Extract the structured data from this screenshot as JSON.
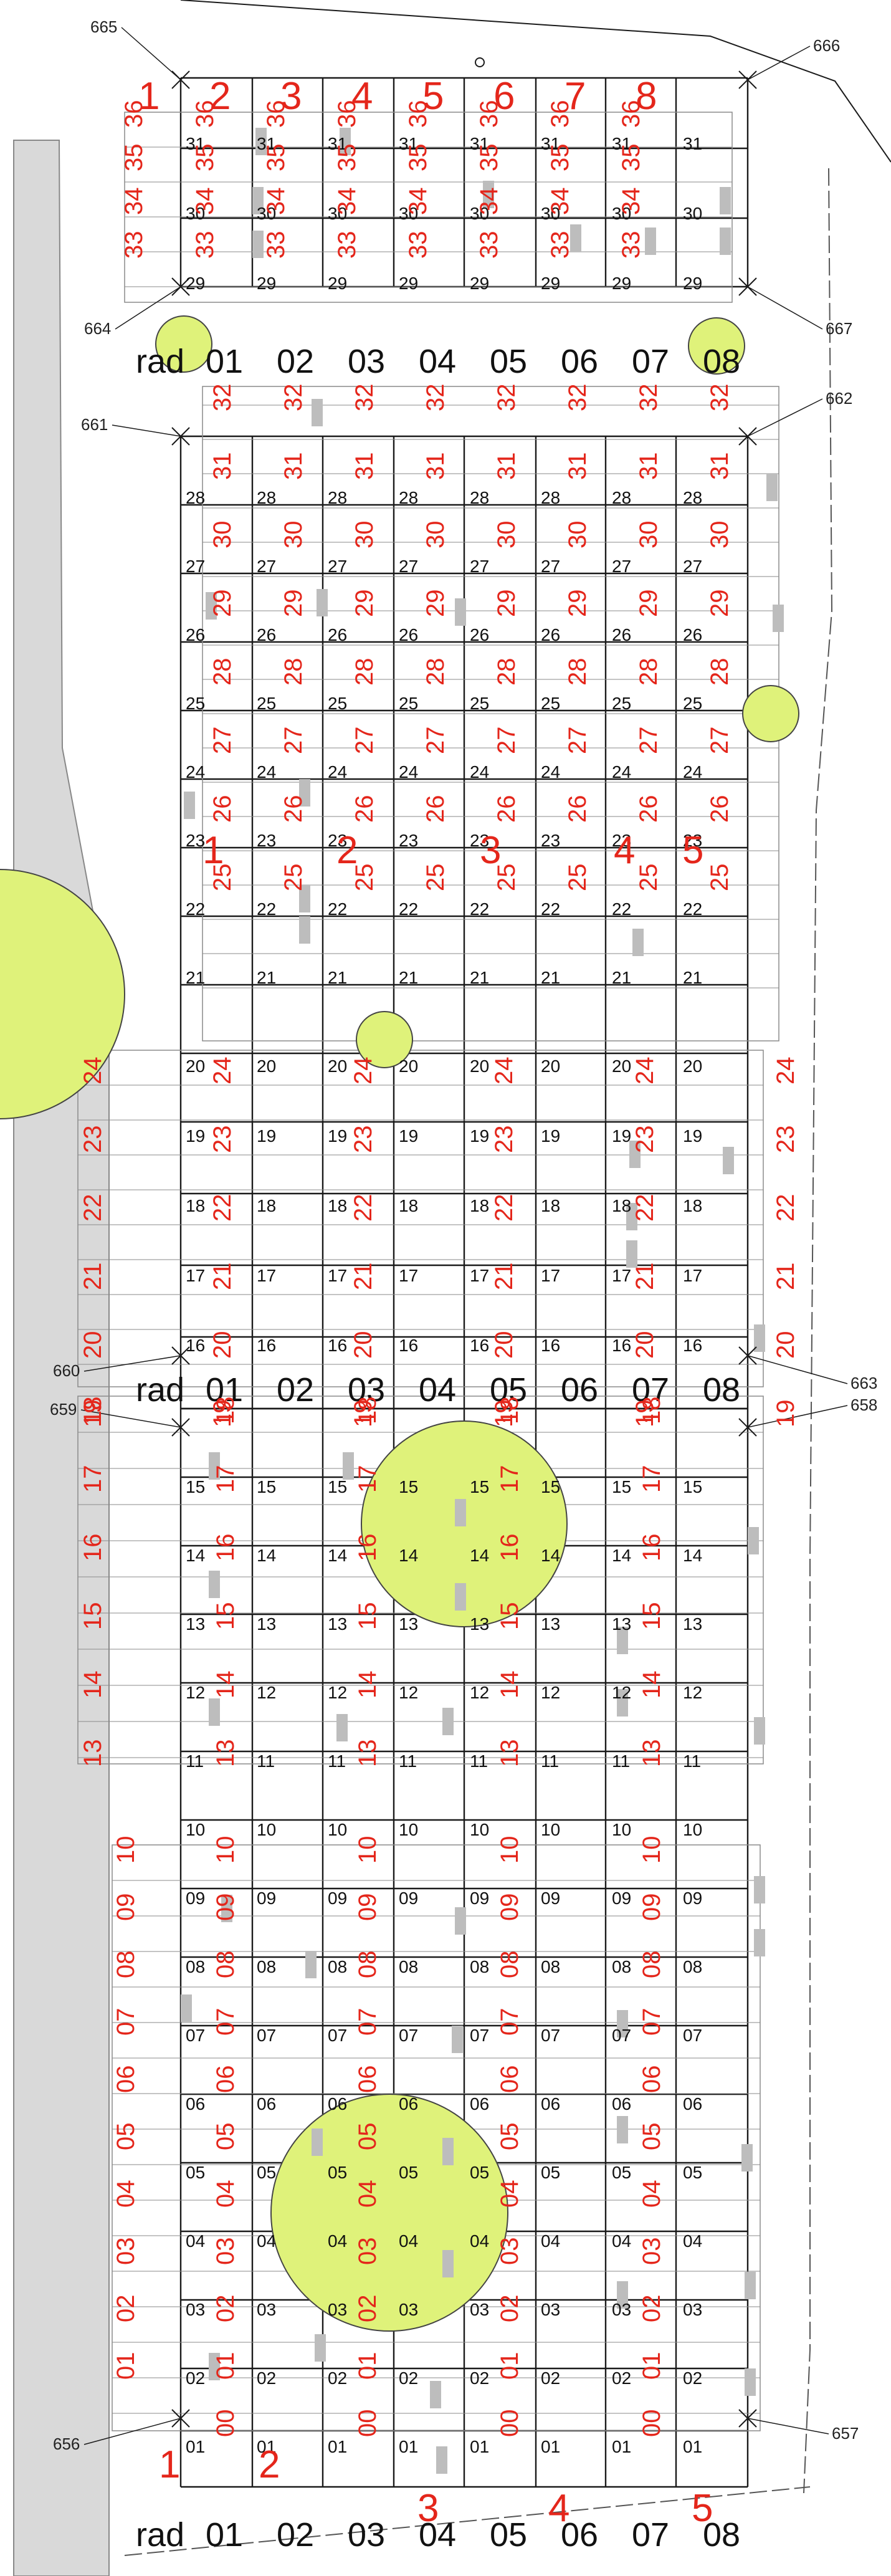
{
  "colors": {
    "line": "#1a1a1a",
    "thin": "#8a8a8a",
    "road": "#d9d9d9",
    "tree": "#dff27a",
    "red": "#e4261b",
    "marker": "#bdbdbd"
  },
  "row_header": {
    "prefix": "rad",
    "cols": [
      "01",
      "02",
      "03",
      "04",
      "05",
      "06",
      "07",
      "08"
    ]
  },
  "survey_points": [
    "665",
    "666",
    "664",
    "667",
    "661",
    "662",
    "660",
    "663",
    "659",
    "658",
    "656",
    "657"
  ],
  "top_section": {
    "col_numbers": [
      "1",
      "2",
      "3",
      "4",
      "5",
      "6",
      "7",
      "8"
    ],
    "grave_numbers": [
      "36",
      "35",
      "34",
      "33"
    ],
    "row_numbers": [
      "31",
      "30",
      "29"
    ]
  },
  "section2": {
    "row_numbers": [
      "28",
      "27",
      "26",
      "25",
      "24",
      "23",
      "22",
      "21",
      "20",
      "19",
      "18",
      "17",
      "16"
    ],
    "grave_numbers": [
      "32",
      "31",
      "30",
      "29",
      "28",
      "27",
      "26",
      "25",
      "24",
      "23",
      "22",
      "21",
      "20",
      "19"
    ],
    "block_labels": [
      "1",
      "2",
      "3",
      "4",
      "5"
    ]
  },
  "section3": {
    "row_numbers": [
      "15",
      "14",
      "13",
      "12",
      "11",
      "10",
      "09",
      "08",
      "07",
      "06",
      "05",
      "04",
      "03",
      "02",
      "01"
    ],
    "grave_numbers": [
      "18",
      "17",
      "16",
      "15",
      "14",
      "13",
      "10",
      "09",
      "08",
      "07",
      "06",
      "05",
      "04",
      "03",
      "02",
      "01",
      "00"
    ],
    "block_labels": [
      "1",
      "2",
      "3",
      "4",
      "5"
    ]
  }
}
